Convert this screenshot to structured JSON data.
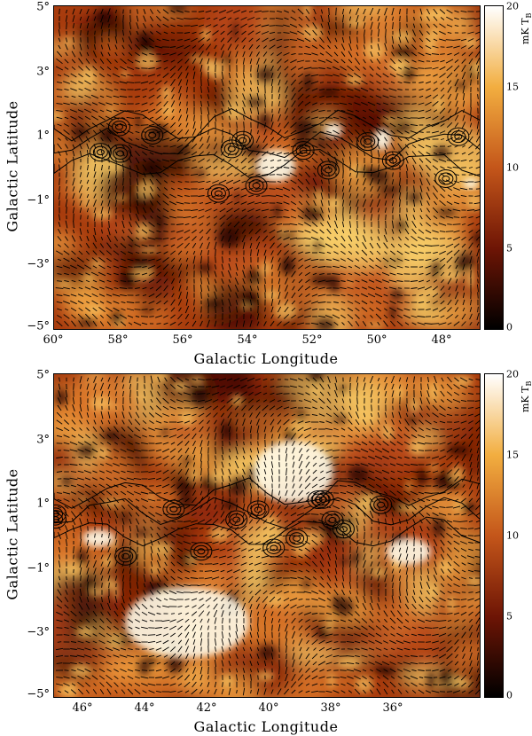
{
  "panels": [
    {
      "id": "top",
      "x_ticks": [
        "60°",
        "58°",
        "56°",
        "54°",
        "52°",
        "50°",
        "48°"
      ],
      "y_ticks": [
        "5°",
        "3°",
        "1°",
        "−1°",
        "−3°",
        "−5°"
      ],
      "xlabel": "Galactic Longitude",
      "ylabel": "Galactic Latitude",
      "colorbar": {
        "ticks": [
          "20",
          "15",
          "10",
          "5",
          "0"
        ],
        "unit_main": "mK T",
        "unit_sub": "B",
        "range": [
          0,
          20
        ]
      }
    },
    {
      "id": "bottom",
      "x_ticks": [
        "46°",
        "44°",
        "42°",
        "40°",
        "38°",
        "36°"
      ],
      "y_ticks": [
        "5°",
        "3°",
        "1°",
        "−1°",
        "−3°",
        "−5°"
      ],
      "xlabel": "Galactic Longitude",
      "ylabel": "Galactic Latitude",
      "colorbar": {
        "ticks": [
          "20",
          "15",
          "10",
          "5",
          "0"
        ],
        "unit_main": "mK T",
        "unit_sub": "B",
        "range": [
          0,
          20
        ]
      }
    }
  ],
  "colors": {
    "low": "#000000",
    "mid1": "#7a1a06",
    "mid2": "#c45a17",
    "mid3": "#f2b040",
    "high": "#ffffff"
  }
}
